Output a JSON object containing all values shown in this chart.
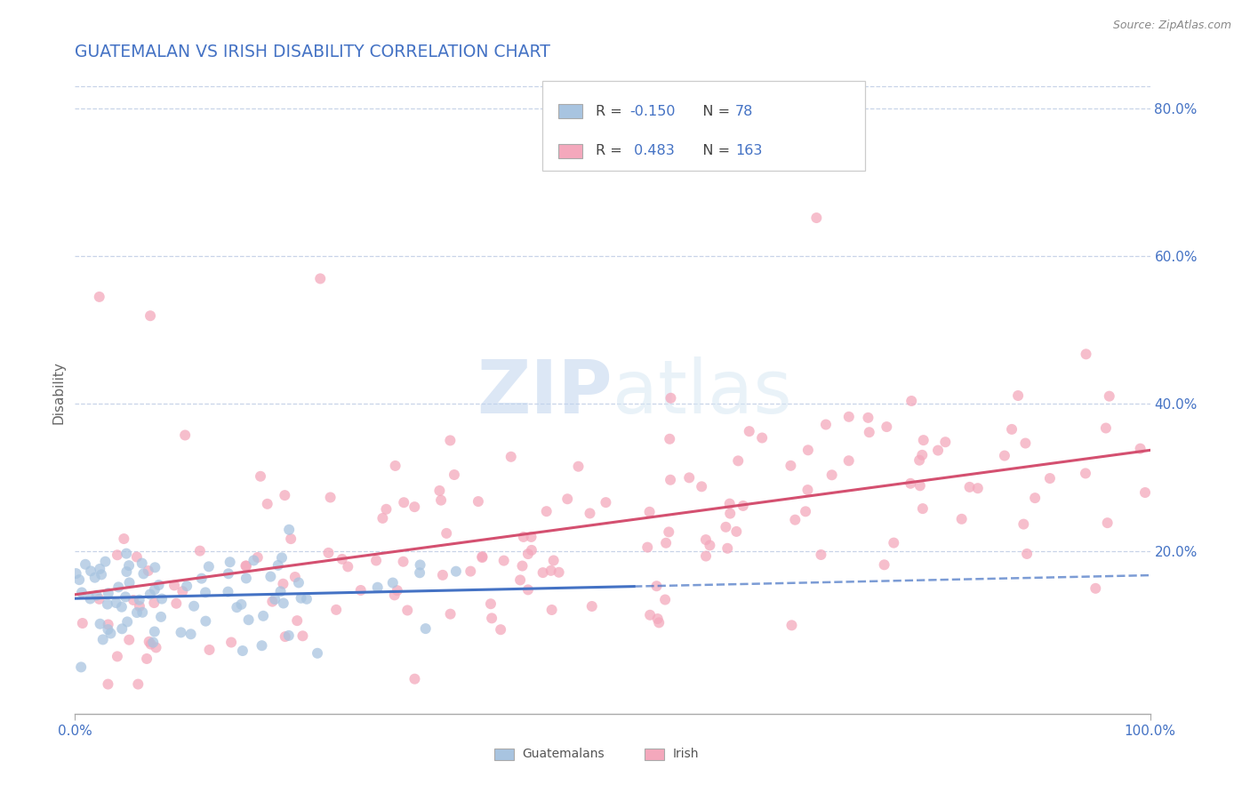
{
  "title": "GUATEMALAN VS IRISH DISABILITY CORRELATION CHART",
  "source": "Source: ZipAtlas.com",
  "ylabel": "Disability",
  "xlim": [
    0.0,
    1.0
  ],
  "ylim": [
    -0.02,
    0.85
  ],
  "y_tick_labels": [
    "20.0%",
    "40.0%",
    "60.0%",
    "80.0%"
  ],
  "y_tick_positions": [
    0.2,
    0.4,
    0.6,
    0.8
  ],
  "guatemalan_color": "#a8c4e0",
  "irish_color": "#f4a8bc",
  "guatemalan_R": -0.15,
  "guatemalan_N": 78,
  "irish_R": 0.483,
  "irish_N": 163,
  "watermark": "ZIPatlas",
  "background_color": "#ffffff",
  "grid_color": "#c8d4e8",
  "legend_R_color": "#4472c4",
  "title_color": "#4472c4",
  "tick_label_color": "#4472c4",
  "guat_line_color": "#4472c4",
  "irish_line_color": "#d45070"
}
